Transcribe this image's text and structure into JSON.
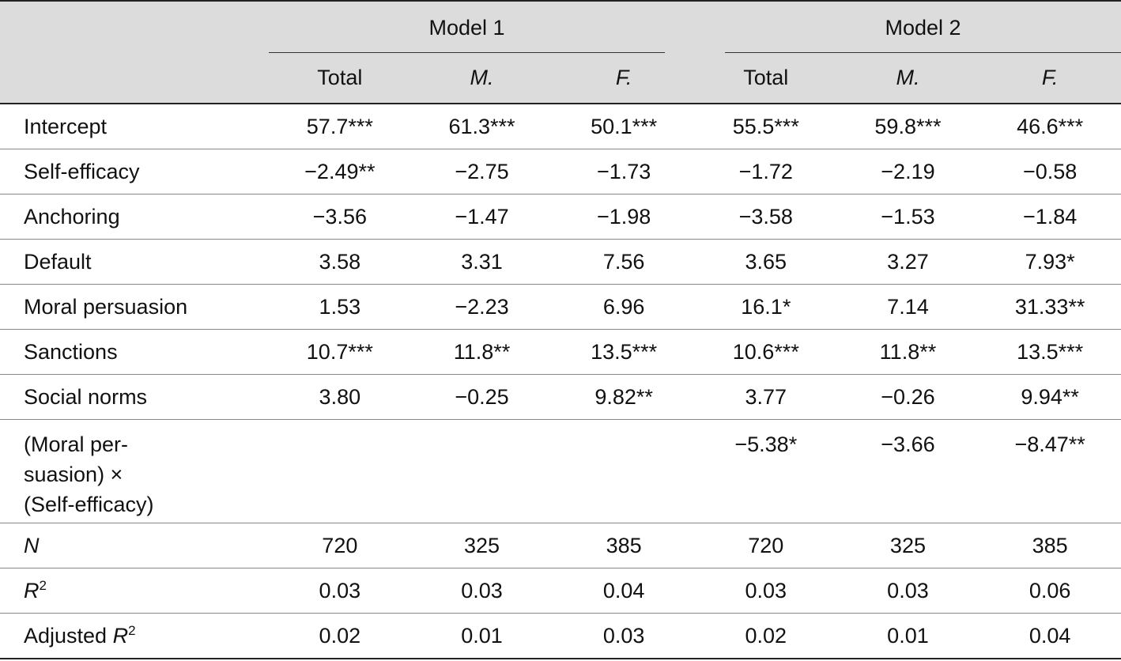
{
  "header": {
    "groups": [
      "Model 1",
      "Model 2"
    ],
    "columns": [
      "Total",
      "M.",
      "F.",
      "Total",
      "M.",
      "F."
    ]
  },
  "rows": [
    {
      "label": "Intercept",
      "cells": [
        "57.7***",
        "61.3***",
        "50.1***",
        "55.5***",
        "59.8***",
        "46.6***"
      ]
    },
    {
      "label": "Self-efficacy",
      "cells": [
        "−2.49**",
        "−2.75",
        "−1.73",
        "−1.72",
        "−2.19",
        "−0.58"
      ]
    },
    {
      "label": "Anchoring",
      "cells": [
        "−3.56",
        "−1.47",
        "−1.98",
        "−3.58",
        "−1.53",
        "−1.84"
      ]
    },
    {
      "label": "Default",
      "cells": [
        "3.58",
        "3.31",
        "7.56",
        "3.65",
        "3.27",
        "7.93*"
      ]
    },
    {
      "label": "Moral persuasion",
      "cells": [
        "1.53",
        "−2.23",
        "6.96",
        "16.1*",
        "7.14",
        "31.33**"
      ]
    },
    {
      "label": "Sanctions",
      "cells": [
        "10.7***",
        "11.8**",
        "13.5***",
        "10.6***",
        "11.8**",
        "13.5***"
      ]
    },
    {
      "label": "Social norms",
      "cells": [
        "3.80",
        "−0.25",
        "9.82**",
        "3.77",
        "−0.26",
        "9.94**"
      ]
    },
    {
      "label": {
        "lines": [
          "(Moral per-",
          "suasion) ×",
          "(Self-efficacy)"
        ]
      },
      "cells": [
        null,
        null,
        null,
        "−5.38*",
        "−3.66",
        "−8.47**"
      ]
    },
    {
      "label": {
        "italic": "N"
      },
      "cells": [
        "720",
        "325",
        "385",
        "720",
        "325",
        "385"
      ]
    },
    {
      "label": {
        "italic": "R",
        "sup": "2"
      },
      "cells": [
        "0.03",
        "0.03",
        "0.04",
        "0.03",
        "0.03",
        "0.06"
      ]
    },
    {
      "label": {
        "text": "Adjusted ",
        "italic": "R",
        "sup": "2"
      },
      "cells": [
        "0.02",
        "0.01",
        "0.03",
        "0.02",
        "0.01",
        "0.04"
      ]
    }
  ]
}
